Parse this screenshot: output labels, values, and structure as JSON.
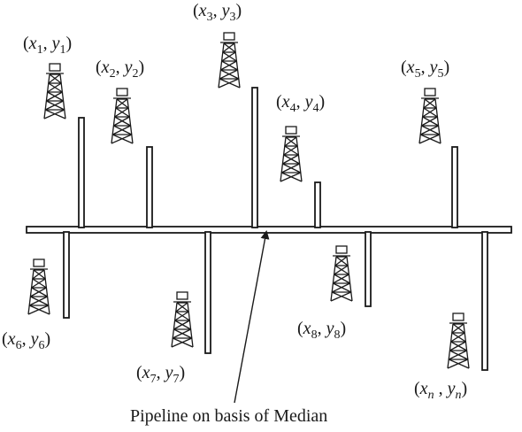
{
  "caption": "Pipeline on basis of Median",
  "wells": [
    {
      "id": "1",
      "label_pre": "(x",
      "sub_x": "1",
      "mid": ", y",
      "sub_y": "1",
      "post": ")"
    },
    {
      "id": "2",
      "label_pre": "(x",
      "sub_x": "2",
      "mid": ", y",
      "sub_y": "2",
      "post": ")"
    },
    {
      "id": "3",
      "label_pre": "(x",
      "sub_x": "3",
      "mid": ", y",
      "sub_y": "3",
      "post": ")"
    },
    {
      "id": "4",
      "label_pre": "(x",
      "sub_x": "4",
      "mid": ", y",
      "sub_y": "4",
      "post": ")"
    },
    {
      "id": "5",
      "label_pre": "(x",
      "sub_x": "5",
      "mid": ", y",
      "sub_y": "5",
      "post": ")"
    },
    {
      "id": "6",
      "label_pre": "(x",
      "sub_x": "6",
      "mid": ", y",
      "sub_y": "6",
      "post": ")"
    },
    {
      "id": "7",
      "label_pre": "(x",
      "sub_x": "7",
      "mid": ", y",
      "sub_y": "7",
      "post": ")"
    },
    {
      "id": "8",
      "label_pre": "(x",
      "sub_x": "8",
      "mid": ", y",
      "sub_y": "8",
      "post": ")"
    },
    {
      "id": "n",
      "label_pre": "(x",
      "sub_x": "n",
      "mid": " , y",
      "sub_y": "n",
      "post": ")"
    }
  ],
  "colors": {
    "ink": "#1a1a1a",
    "background": "#ffffff"
  },
  "icons": {
    "well": "oil-derrick-icon",
    "arrow": "arrow-icon"
  }
}
